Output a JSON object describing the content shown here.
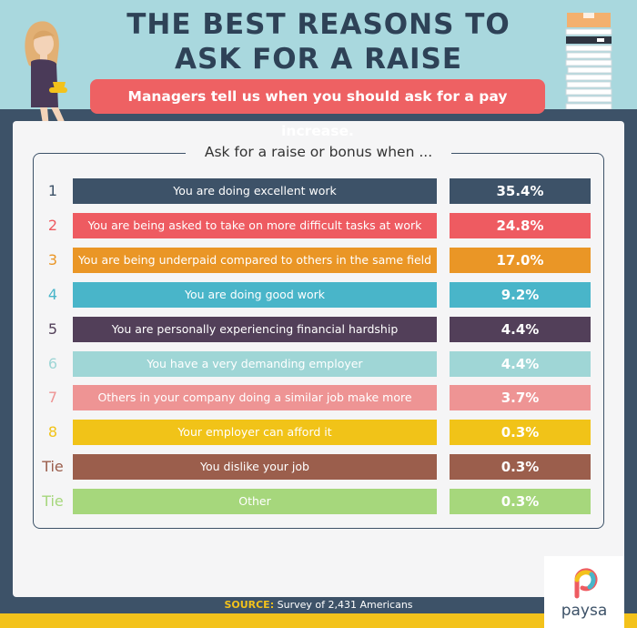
{
  "header": {
    "title_line1": "THE BEST REASONS TO",
    "title_line2": "ASK FOR A RAISE",
    "subtitle": "Managers tell us when you should ask for a pay increase."
  },
  "panel": {
    "heading": "Ask for a raise or bonus when ..."
  },
  "colors": {
    "background_dark": "#3d5268",
    "background_light": "#a9d8de",
    "accent_yellow": "#f3c21b",
    "subtitle_red": "#ee6163"
  },
  "chart_data": {
    "type": "table",
    "rows": [
      {
        "rank": "1",
        "reason": "You are doing excellent work",
        "value": "35.4%",
        "color": "#3d5268"
      },
      {
        "rank": "2",
        "reason": "You are being asked to take on more difficult tasks at work",
        "value": "24.8%",
        "color": "#ee5b61"
      },
      {
        "rank": "3",
        "reason": "You are being underpaid compared to others in the same field",
        "value": "17.0%",
        "color": "#ea9626"
      },
      {
        "rank": "4",
        "reason": "You are doing good work",
        "value": "9.2%",
        "color": "#49b5c9"
      },
      {
        "rank": "5",
        "reason": "You are personally experiencing financial hardship",
        "value": "4.4%",
        "color": "#523f59"
      },
      {
        "rank": "6",
        "reason": "You have a very demanding employer",
        "value": "4.4%",
        "color": "#9fd6d6"
      },
      {
        "rank": "7",
        "reason": "Others in your company doing a similar job make more",
        "value": "3.7%",
        "color": "#ee9494"
      },
      {
        "rank": "8",
        "reason": "Your employer can afford it",
        "value": "0.3%",
        "color": "#f1c318"
      },
      {
        "rank": "Tie",
        "reason": "You dislike your job",
        "value": "0.3%",
        "color": "#9b5e4c"
      },
      {
        "rank": "Tie",
        "reason": "Other",
        "value": "0.3%",
        "color": "#a6d77c"
      }
    ]
  },
  "footer": {
    "source_label": "SOURCE:",
    "source_text": "Survey of 2,431 Americans",
    "logo": "paysa",
    "logo_icon": "paysa-logo-icon"
  }
}
